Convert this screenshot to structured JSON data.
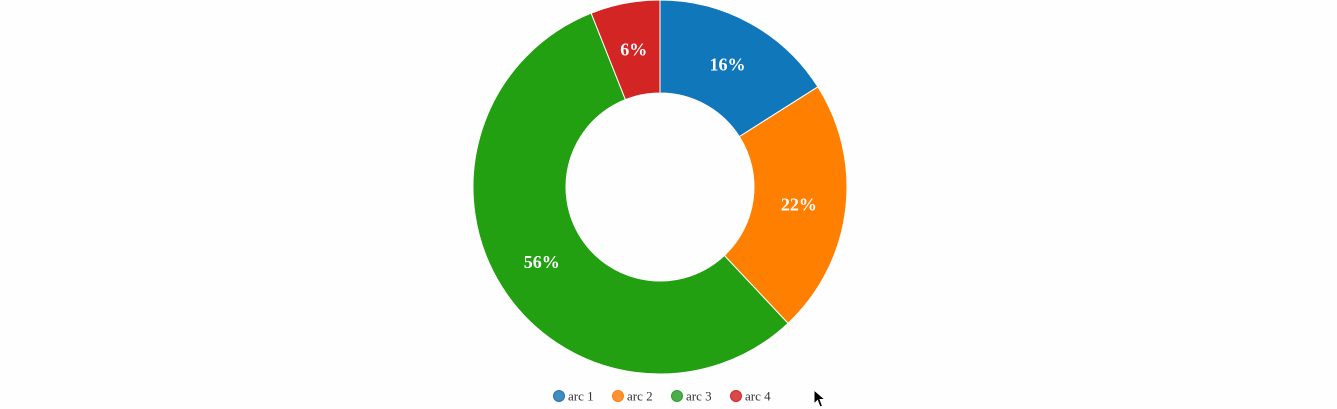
{
  "chart_data": {
    "type": "pie",
    "donut": true,
    "categories": [
      "arc 1",
      "arc 2",
      "arc 3",
      "arc 4"
    ],
    "values": [
      16,
      22,
      56,
      6
    ],
    "labels": [
      "16%",
      "22%",
      "56%",
      "6%"
    ],
    "colors": [
      "#1f77b4",
      "#ff7f0e",
      "#2ca02c",
      "#d62728"
    ],
    "slice_colors": [
      "#1177bb",
      "#ff7f00",
      "#22a012",
      "#d42525"
    ],
    "legend": {
      "placement": "bottom",
      "entries": [
        "arc 1",
        "arc 2",
        "arc 3",
        "arc 4"
      ]
    }
  }
}
